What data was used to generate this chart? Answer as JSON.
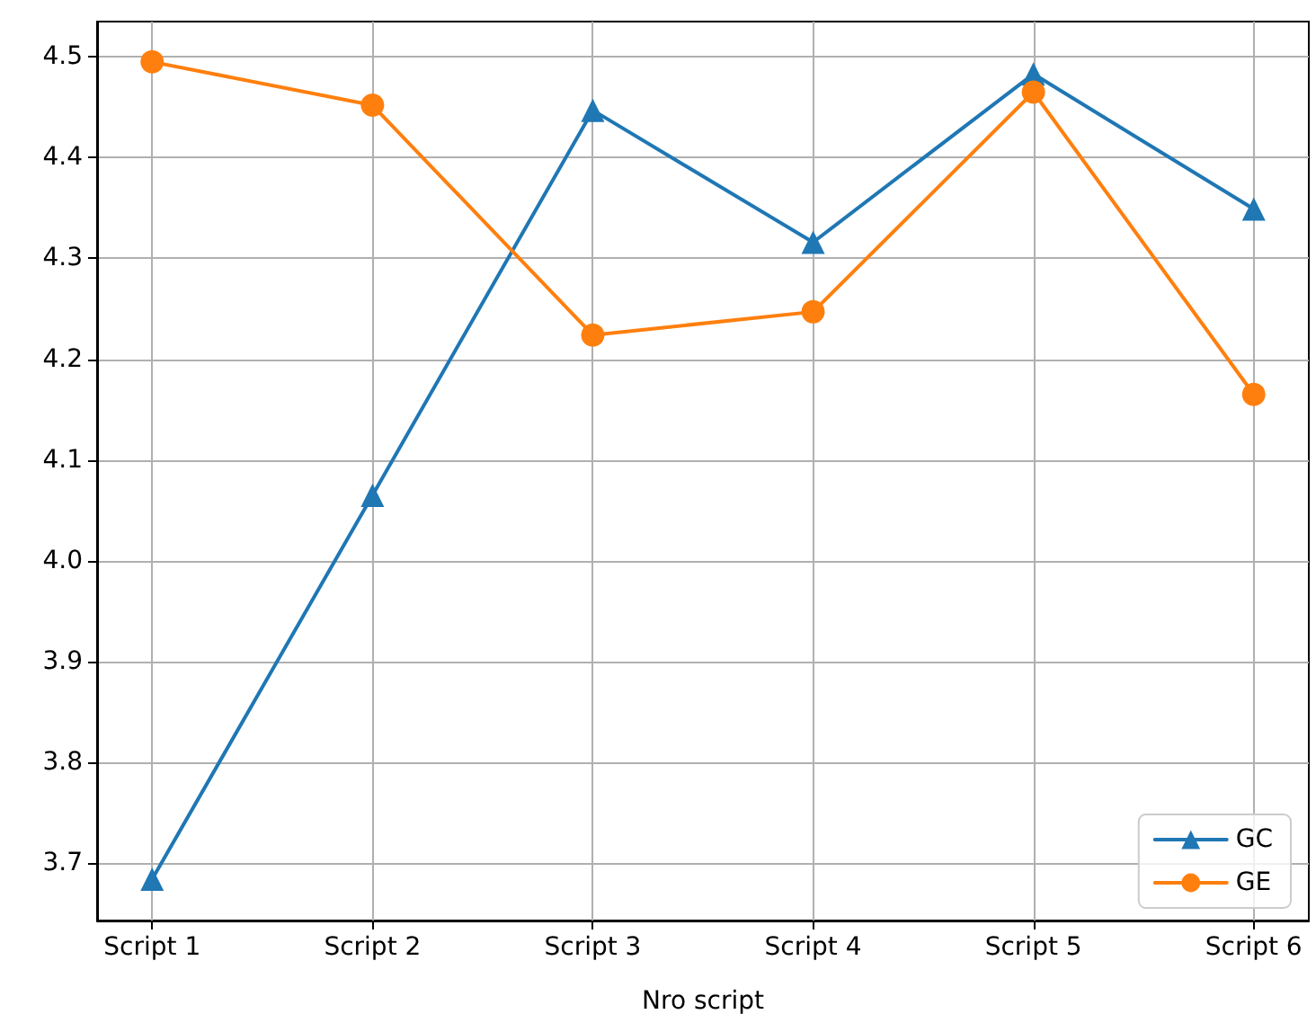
{
  "chart_data": {
    "type": "line",
    "xlabel": "Nro script",
    "categories": [
      "Script 1",
      "Script 2",
      "Script 3",
      "Script 4",
      "Script 5",
      "Script 6"
    ],
    "series": [
      {
        "name": "GC",
        "color": "#1f77b4",
        "marker": "triangle",
        "values": [
          3.684,
          4.065,
          4.447,
          4.316,
          4.483,
          4.349
        ]
      },
      {
        "name": "GE",
        "color": "#ff7f0e",
        "marker": "circle",
        "values": [
          4.495,
          4.452,
          4.224,
          4.247,
          4.465,
          4.165
        ]
      }
    ],
    "ylim": [
      3.643,
      4.535
    ],
    "yticks": [
      3.7,
      3.8,
      3.9,
      {
        "value": 4,
        "label": "4.0"
      },
      4.1,
      4.2,
      4.3,
      4.4,
      4.5
    ],
    "grid": true,
    "legend": "bottom right",
    "line_style": "solid"
  }
}
